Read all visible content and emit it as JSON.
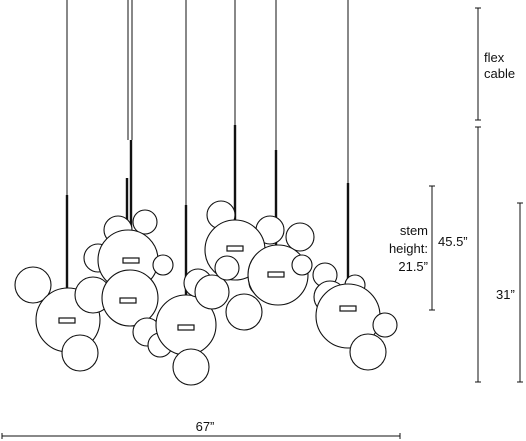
{
  "dimensions": {
    "flex_cable": {
      "lines": [
        "flex",
        "cable"
      ]
    },
    "stem_height": {
      "lines": [
        "stem",
        "height:",
        "21.5”"
      ]
    },
    "overall_height": "45.5”",
    "drop": "31”",
    "width": "67”"
  }
}
